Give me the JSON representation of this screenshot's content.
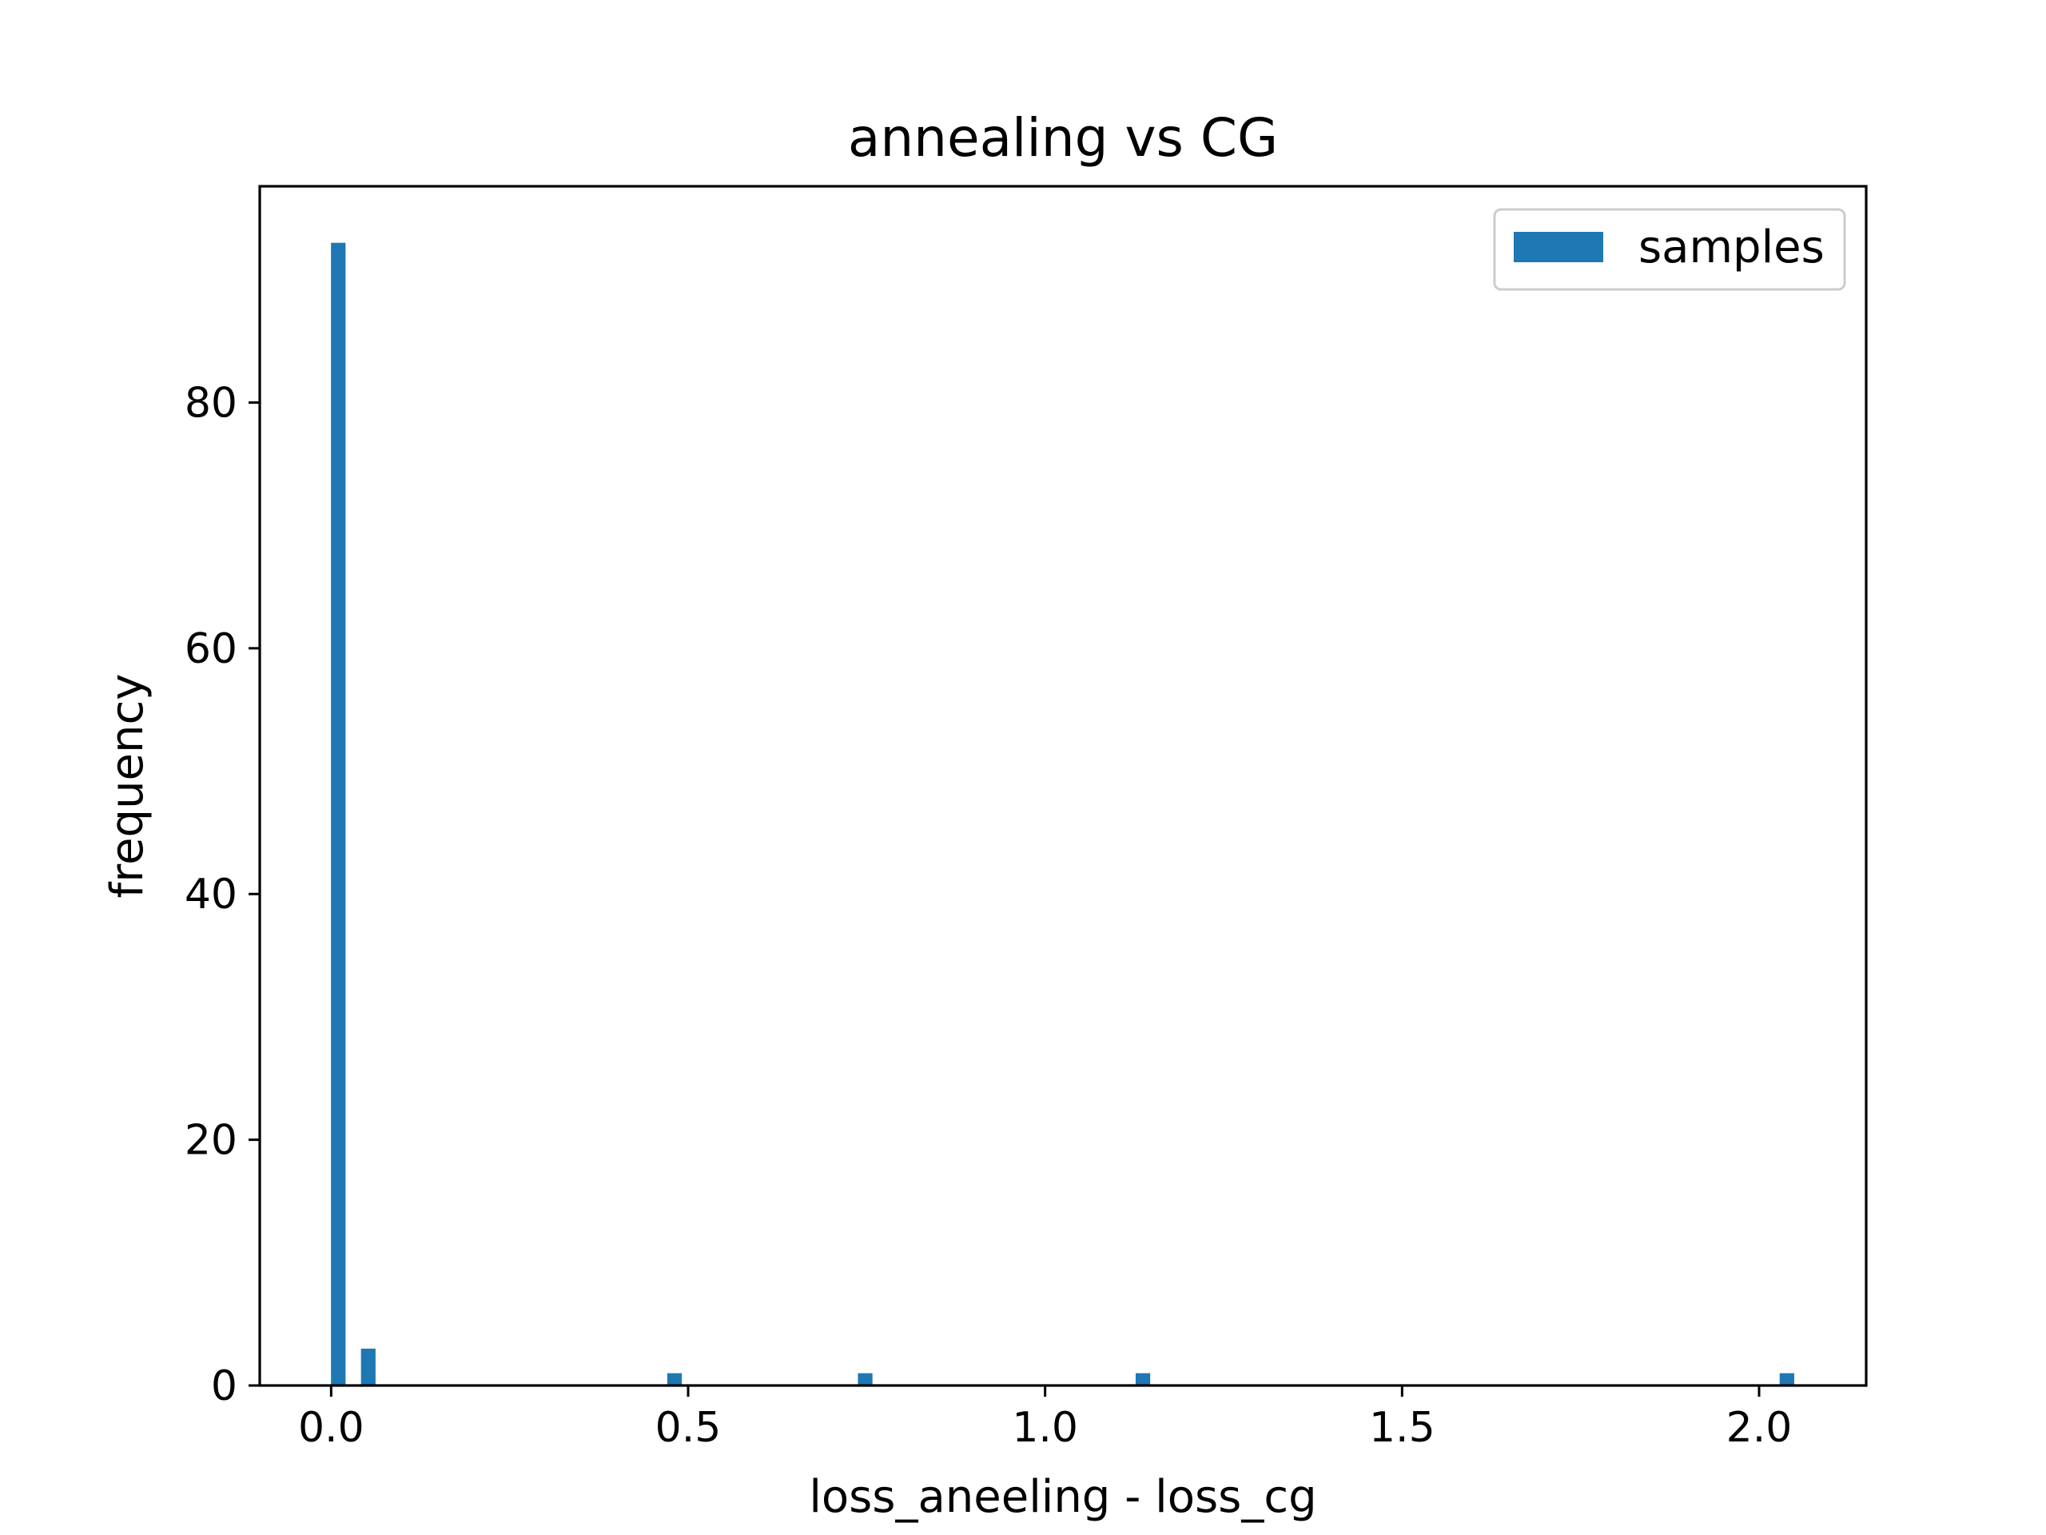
{
  "chart_data": {
    "type": "bar",
    "title": "annealing vs CG",
    "xlabel": "loss_aneeling - loss_cg",
    "ylabel": "frequency",
    "xlim": [
      -0.1,
      2.15
    ],
    "ylim": [
      0,
      97.6
    ],
    "xticks": [
      0.0,
      0.5,
      1.0,
      1.5,
      2.0
    ],
    "xtick_labels": [
      "0.0",
      "0.5",
      "1.0",
      "1.5",
      "2.0"
    ],
    "yticks": [
      0,
      20,
      40,
      60,
      80
    ],
    "ytick_labels": [
      "0",
      "20",
      "40",
      "60",
      "80"
    ],
    "grid": false,
    "legend_position": "top-right",
    "series": [
      {
        "name": "samples",
        "color": "#1f77b4",
        "bin_width": 0.0204,
        "bins": [
          {
            "x": 0.01,
            "count": 93
          },
          {
            "x": 0.052,
            "count": 3
          },
          {
            "x": 0.481,
            "count": 1
          },
          {
            "x": 0.748,
            "count": 1
          },
          {
            "x": 1.137,
            "count": 1
          },
          {
            "x": 2.039,
            "count": 1
          }
        ]
      }
    ]
  }
}
